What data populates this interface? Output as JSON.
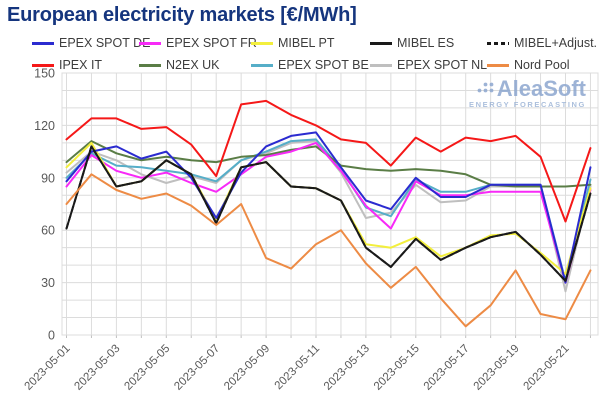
{
  "title": "European electricity markets [€/MWh]",
  "watermark": {
    "name": "AleaSoft",
    "subtitle": "ENERGY FORECASTING"
  },
  "chart_data": {
    "type": "line",
    "title": "European electricity markets [€/MWh]",
    "xlabel": "",
    "ylabel": "",
    "ylim": [
      0,
      150
    ],
    "y_ticks": [
      0,
      30,
      60,
      90,
      120,
      150
    ],
    "grid": true,
    "legend_position": "top",
    "x": [
      "2023-05-01",
      "2023-05-02",
      "2023-05-03",
      "2023-05-04",
      "2023-05-05",
      "2023-05-06",
      "2023-05-07",
      "2023-05-08",
      "2023-05-09",
      "2023-05-10",
      "2023-05-11",
      "2023-05-12",
      "2023-05-13",
      "2023-05-14",
      "2023-05-15",
      "2023-05-16",
      "2023-05-17",
      "2023-05-18",
      "2023-05-19",
      "2023-05-20",
      "2023-05-21",
      "2023-05-22"
    ],
    "x_tick_labels": [
      "2023-05-01",
      "2023-05-03",
      "2023-05-05",
      "2023-05-07",
      "2023-05-09",
      "2023-05-11",
      "2023-05-13",
      "2023-05-15",
      "2023-05-17",
      "2023-05-19",
      "2023-05-21"
    ],
    "series": [
      {
        "name": "EPEX SPOT DE",
        "color": "#2b2bd0",
        "dash": false,
        "values": [
          88,
          105,
          108,
          101,
          105,
          90,
          67,
          93,
          108,
          114,
          116,
          96,
          77,
          72,
          90,
          79,
          79,
          86,
          86,
          86,
          30,
          96
        ]
      },
      {
        "name": "EPEX SPOT FR",
        "color": "#f72af7",
        "dash": false,
        "values": [
          85,
          103,
          94,
          90,
          93,
          87,
          82,
          92,
          102,
          105,
          110,
          94,
          74,
          61,
          88,
          80,
          80,
          82,
          82,
          82,
          30,
          83
        ]
      },
      {
        "name": "MIBEL PT",
        "color": "#f3ef3d",
        "dash": false,
        "values": [
          96,
          110,
          85,
          88,
          100,
          92,
          66,
          96,
          99,
          85,
          84,
          77,
          52,
          50,
          56,
          45,
          50,
          57,
          58,
          47,
          35,
          84
        ]
      },
      {
        "name": "MIBEL ES",
        "color": "#1a1a1a",
        "dash": false,
        "values": [
          61,
          108,
          85,
          88,
          100,
          92,
          64,
          96,
          99,
          85,
          84,
          77,
          50,
          39,
          55,
          43,
          50,
          56,
          59,
          46,
          31,
          81
        ]
      },
      {
        "name": "MIBEL+Adjust.",
        "color": "#1a1a1a",
        "dash": true,
        "values": [
          61,
          108,
          85,
          88,
          100,
          92,
          64,
          96,
          99,
          85,
          84,
          77,
          50,
          39,
          55,
          43,
          50,
          56,
          59,
          46,
          31,
          81
        ]
      },
      {
        "name": "IPEX IT",
        "color": "#f51818",
        "dash": false,
        "values": [
          112,
          124,
          124,
          118,
          119,
          109,
          91,
          132,
          134,
          126,
          120,
          112,
          110,
          97,
          113,
          105,
          113,
          111,
          114,
          102,
          65,
          107
        ]
      },
      {
        "name": "N2EX UK",
        "color": "#5a7d46",
        "dash": false,
        "values": [
          99,
          111,
          104,
          100,
          102,
          100,
          99,
          102,
          103,
          106,
          108,
          97,
          95,
          94,
          95,
          94,
          92,
          86,
          85,
          85,
          85,
          86
        ]
      },
      {
        "name": "EPEX SPOT BE",
        "color": "#56aec8",
        "dash": false,
        "values": [
          90,
          104,
          97,
          96,
          94,
          92,
          88,
          100,
          105,
          111,
          112,
          95,
          73,
          68,
          89,
          82,
          82,
          86,
          86,
          86,
          31,
          89
        ]
      },
      {
        "name": "EPEX SPOT NL",
        "color": "#bfbfbf",
        "dash": false,
        "values": [
          93,
          105,
          100,
          92,
          87,
          91,
          87,
          100,
          104,
          110,
          111,
          93,
          67,
          70,
          86,
          76,
          77,
          85,
          85,
          85,
          25,
          85
        ]
      },
      {
        "name": "Nord Pool",
        "color": "#ed8b45",
        "dash": false,
        "values": [
          75,
          92,
          83,
          78,
          81,
          74,
          63,
          75,
          44,
          38,
          52,
          60,
          41,
          27,
          39,
          21,
          5,
          17,
          37,
          12,
          9,
          37
        ]
      }
    ]
  },
  "colors": {
    "title": "#15357e",
    "axis_text": "#595959",
    "gridline": "#dcdcdc",
    "legend_text": "#3d3d3d",
    "watermark": "#8ca6cf"
  }
}
